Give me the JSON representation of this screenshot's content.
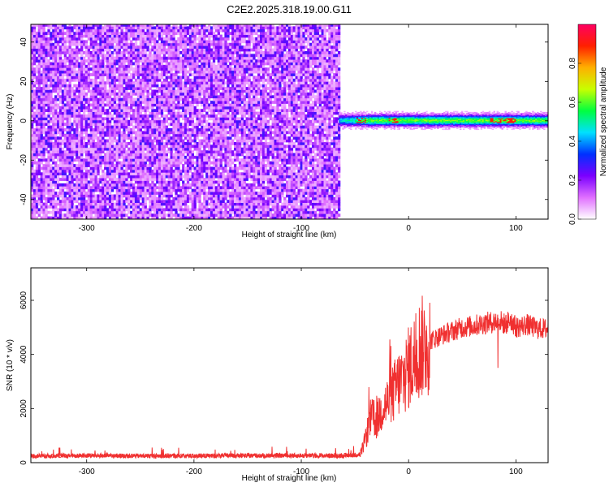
{
  "title": "C2E2.2025.318.19.00.G11",
  "chart_data": [
    {
      "type": "heatmap",
      "xlabel": "Height of straight line (km)",
      "ylabel": "Frequency (Hz)",
      "xlim": [
        -352,
        130
      ],
      "ylim": [
        -50,
        49
      ],
      "xticks": [
        -300,
        -200,
        -100,
        0,
        100
      ],
      "yticks": [
        -40,
        -20,
        0,
        20,
        40
      ],
      "noise_region_x": [
        -352,
        -65
      ],
      "signal_band_hz": [
        -3,
        3
      ],
      "colorbar": {
        "label": "Normalized spectral amplitude",
        "range": [
          0,
          1
        ],
        "ticks": [
          0.0,
          0.2,
          0.4,
          0.6,
          0.8
        ],
        "tick_labels": [
          "0.0",
          "0.2",
          "0.4",
          "0.6",
          "0.8"
        ],
        "colors": [
          "#ffffff",
          "#e070ff",
          "#7b00ff",
          "#0030ff",
          "#00e0ff",
          "#00ff40",
          "#c8ff00",
          "#ffb000",
          "#ff2000",
          "#ff0060"
        ]
      }
    },
    {
      "type": "line",
      "xlabel": "Height of straight line (km)",
      "ylabel": "SNR (10 * v/v)",
      "xlim": [
        -352,
        130
      ],
      "ylim": [
        0,
        7200
      ],
      "xticks": [
        -300,
        -200,
        -100,
        0,
        100
      ],
      "yticks": [
        0,
        2000,
        4000,
        6000
      ],
      "color": "#f03030",
      "x": [
        -352,
        -300,
        -250,
        -200,
        -150,
        -100,
        -60,
        -45,
        -40,
        -35,
        -30,
        -25,
        -20,
        -15,
        -10,
        -5,
        0,
        5,
        10,
        20,
        30,
        40,
        50,
        60,
        70,
        80,
        85,
        90,
        95,
        100,
        110,
        120,
        130
      ],
      "y": [
        250,
        260,
        250,
        250,
        260,
        260,
        260,
        300,
        900,
        1700,
        1500,
        2000,
        2200,
        2500,
        2900,
        3100,
        3500,
        3800,
        4200,
        4500,
        4700,
        4850,
        5000,
        5050,
        5150,
        5200,
        5250,
        5100,
        5300,
        5000,
        5100,
        4950,
        4950
      ]
    }
  ]
}
